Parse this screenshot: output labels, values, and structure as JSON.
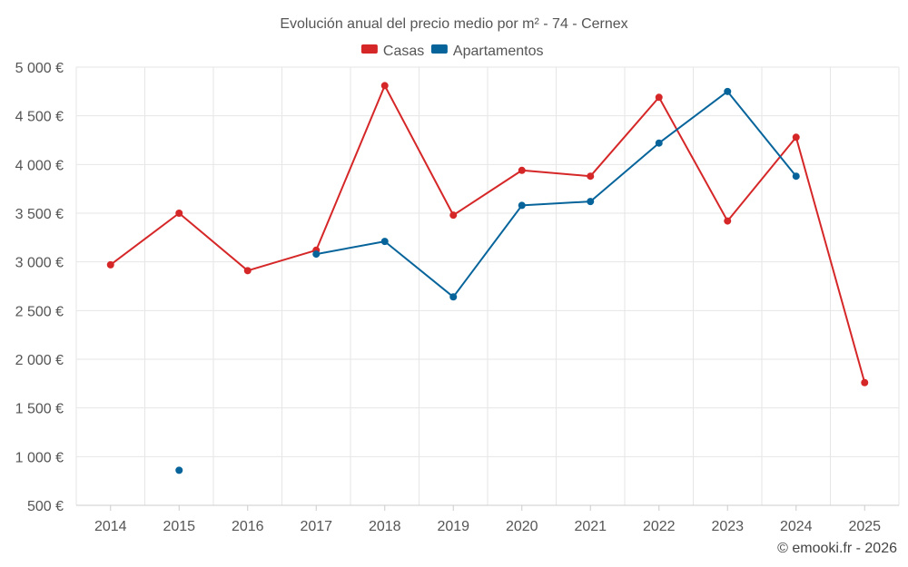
{
  "chart_data": {
    "type": "line",
    "title": "Evolución anual del precio medio por m² - 74 - Cernex",
    "categories": [
      "2014",
      "2015",
      "2016",
      "2017",
      "2018",
      "2019",
      "2020",
      "2021",
      "2022",
      "2023",
      "2024",
      "2025"
    ],
    "ylim": [
      500,
      5000
    ],
    "yticks": [
      5000,
      4500,
      4000,
      3500,
      3000,
      2500,
      2000,
      1500,
      1000,
      500
    ],
    "ytick_labels": [
      "5 000 €",
      "4 500 €",
      "4 000 €",
      "3 500 €",
      "3 000 €",
      "2 500 €",
      "2 000 €",
      "1 500 €",
      "1 000 €",
      "500 €"
    ],
    "grid": true,
    "legend_position": "top-center",
    "series": [
      {
        "name": "Casas",
        "color": "#d62728",
        "values": [
          2970,
          3500,
          2910,
          3120,
          4810,
          3480,
          3940,
          3880,
          4690,
          3420,
          4280,
          1760
        ]
      },
      {
        "name": "Apartamentos",
        "color": "#06649b",
        "values": [
          null,
          860,
          null,
          3080,
          3210,
          2640,
          3580,
          3620,
          4220,
          4750,
          3880,
          null
        ]
      }
    ]
  },
  "credit": "© emooki.fr - 2026"
}
